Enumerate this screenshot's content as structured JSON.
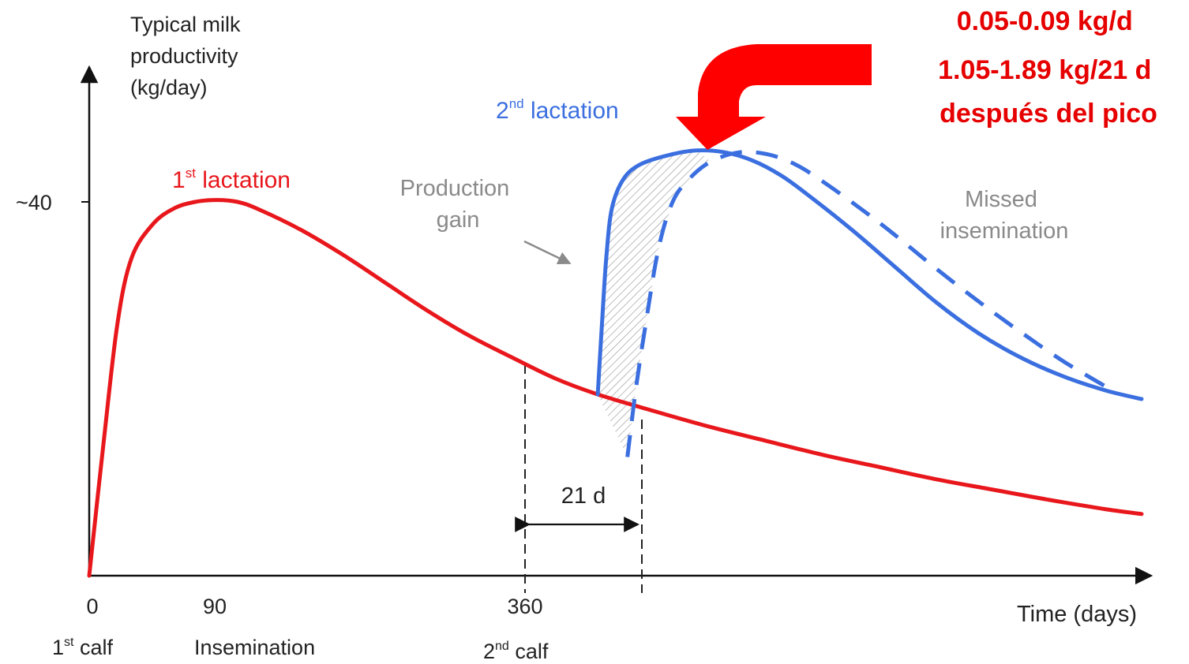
{
  "chart_data": {
    "type": "line",
    "ylabel_lines": [
      "Typical milk",
      "productivity",
      "(kg/day)"
    ],
    "xlabel": "Time (days)",
    "y_tick_label": "~40",
    "y_tick_value": 40,
    "x_ticks": [
      {
        "value": 0,
        "label": "0",
        "event_label": "1",
        "event_sup": "st",
        "event_rest": " calf"
      },
      {
        "value": 90,
        "label": "90",
        "event_label": "Insemination",
        "event_sup": "",
        "event_rest": ""
      },
      {
        "value": 360,
        "label": "360",
        "event_label": "2",
        "event_sup": "nd",
        "event_rest": " calf"
      }
    ],
    "x_range": [
      0,
      730
    ],
    "y_range": [
      0,
      50
    ],
    "series": [
      {
        "name_main": "1",
        "name_sup": "st",
        "name_rest": " lactation",
        "color": "#e8171c",
        "style": "solid",
        "points": [
          [
            0,
            0
          ],
          [
            10,
            14
          ],
          [
            20,
            27
          ],
          [
            30,
            34
          ],
          [
            45,
            37.6
          ],
          [
            60,
            39.3
          ],
          [
            75,
            40
          ],
          [
            90,
            40.2
          ],
          [
            105,
            40
          ],
          [
            120,
            39.2
          ],
          [
            150,
            37
          ],
          [
            180,
            34.3
          ],
          [
            210,
            31.3
          ],
          [
            240,
            28.3
          ],
          [
            270,
            25.6
          ],
          [
            300,
            23.3
          ],
          [
            330,
            21.1
          ],
          [
            360,
            19.4
          ],
          [
            400,
            17.6
          ],
          [
            440,
            15.9
          ],
          [
            480,
            14.4
          ],
          [
            520,
            12.9
          ],
          [
            560,
            11.6
          ],
          [
            600,
            10.3
          ],
          [
            640,
            9.2
          ],
          [
            680,
            8.1
          ],
          [
            720,
            7.1
          ],
          [
            745,
            6.6
          ]
        ]
      },
      {
        "name_main": "2",
        "name_sup": "nd",
        "name_rest": " lactation",
        "color": "#3b6fe0",
        "style": "solid",
        "points": [
          [
            360,
            19.4
          ],
          [
            363,
            27
          ],
          [
            366,
            34
          ],
          [
            370,
            39.3
          ],
          [
            378,
            42.4
          ],
          [
            390,
            44
          ],
          [
            410,
            45
          ],
          [
            430,
            45.5
          ],
          [
            450,
            45.3
          ],
          [
            470,
            44.4
          ],
          [
            490,
            42.8
          ],
          [
            510,
            40.6
          ],
          [
            540,
            37
          ],
          [
            570,
            33.1
          ],
          [
            600,
            29.2
          ],
          [
            630,
            25.9
          ],
          [
            660,
            23.3
          ],
          [
            690,
            21.3
          ],
          [
            720,
            19.8
          ],
          [
            745,
            18.9
          ]
        ]
      },
      {
        "name": "Missed insemination",
        "color": "#3b6fe0",
        "style": "dashed",
        "points": [
          [
            381,
            12.7
          ],
          [
            387,
            20
          ],
          [
            394,
            27
          ],
          [
            403,
            35
          ],
          [
            413,
            40
          ],
          [
            425,
            42.5
          ],
          [
            440,
            44.3
          ],
          [
            460,
            45.3
          ],
          [
            480,
            45.1
          ],
          [
            500,
            44
          ],
          [
            520,
            42.1
          ],
          [
            545,
            39.4
          ],
          [
            570,
            36.5
          ],
          [
            600,
            32.8
          ],
          [
            630,
            29.3
          ],
          [
            660,
            26
          ],
          [
            690,
            22.9
          ],
          [
            720,
            20.2
          ]
        ]
      }
    ],
    "annotations": {
      "production_gain_lines": [
        "Production",
        "gain"
      ],
      "missed_lines": [
        "Missed",
        "insemination"
      ],
      "interval_label": "21 d",
      "interval": [
        360,
        381
      ]
    },
    "callout": {
      "lines": [
        "0.05-0.09 kg/d",
        "1.05-1.89 kg/21 d",
        "después del pico"
      ],
      "color": "#e60000"
    }
  }
}
